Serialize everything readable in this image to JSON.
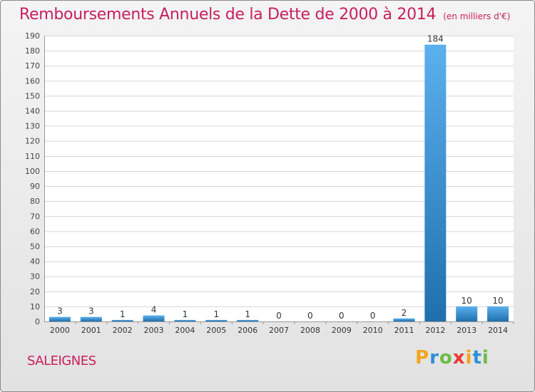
{
  "title": "Remboursements Annuels de la Dette de 2000 à 2014",
  "unit_note": "(en milliers d'€)",
  "commune": "SALEIGNES",
  "logo": {
    "text": "Proxiti",
    "letters": [
      "P",
      "r",
      "o",
      "x",
      "i",
      "t",
      "i"
    ],
    "colors": [
      "#f3a51d",
      "#2e8fd8",
      "#6cbd45",
      "#e8392f",
      "#f3a51d",
      "#2e8fd8",
      "#6cbd45"
    ]
  },
  "colors": {
    "title": "#c71f5e",
    "bar_top": "#5bb0ee",
    "bar_bottom": "#1f6fae"
  },
  "chart_data": {
    "type": "bar",
    "title": "Remboursements Annuels de la Dette de 2000 à 2014",
    "categories": [
      "2000",
      "2001",
      "2002",
      "2003",
      "2004",
      "2005",
      "2006",
      "2007",
      "2008",
      "2009",
      "2010",
      "2011",
      "2012",
      "2013",
      "2014"
    ],
    "values": [
      3,
      3,
      1,
      4,
      1,
      1,
      1,
      0,
      0,
      0,
      0,
      2,
      184,
      10,
      10
    ],
    "ylim": [
      0,
      190
    ],
    "yticks": [
      0,
      10,
      20,
      30,
      40,
      50,
      60,
      70,
      80,
      90,
      100,
      110,
      120,
      130,
      140,
      150,
      160,
      170,
      180,
      190
    ],
    "grid": true,
    "xlabel": "",
    "ylabel": ""
  }
}
